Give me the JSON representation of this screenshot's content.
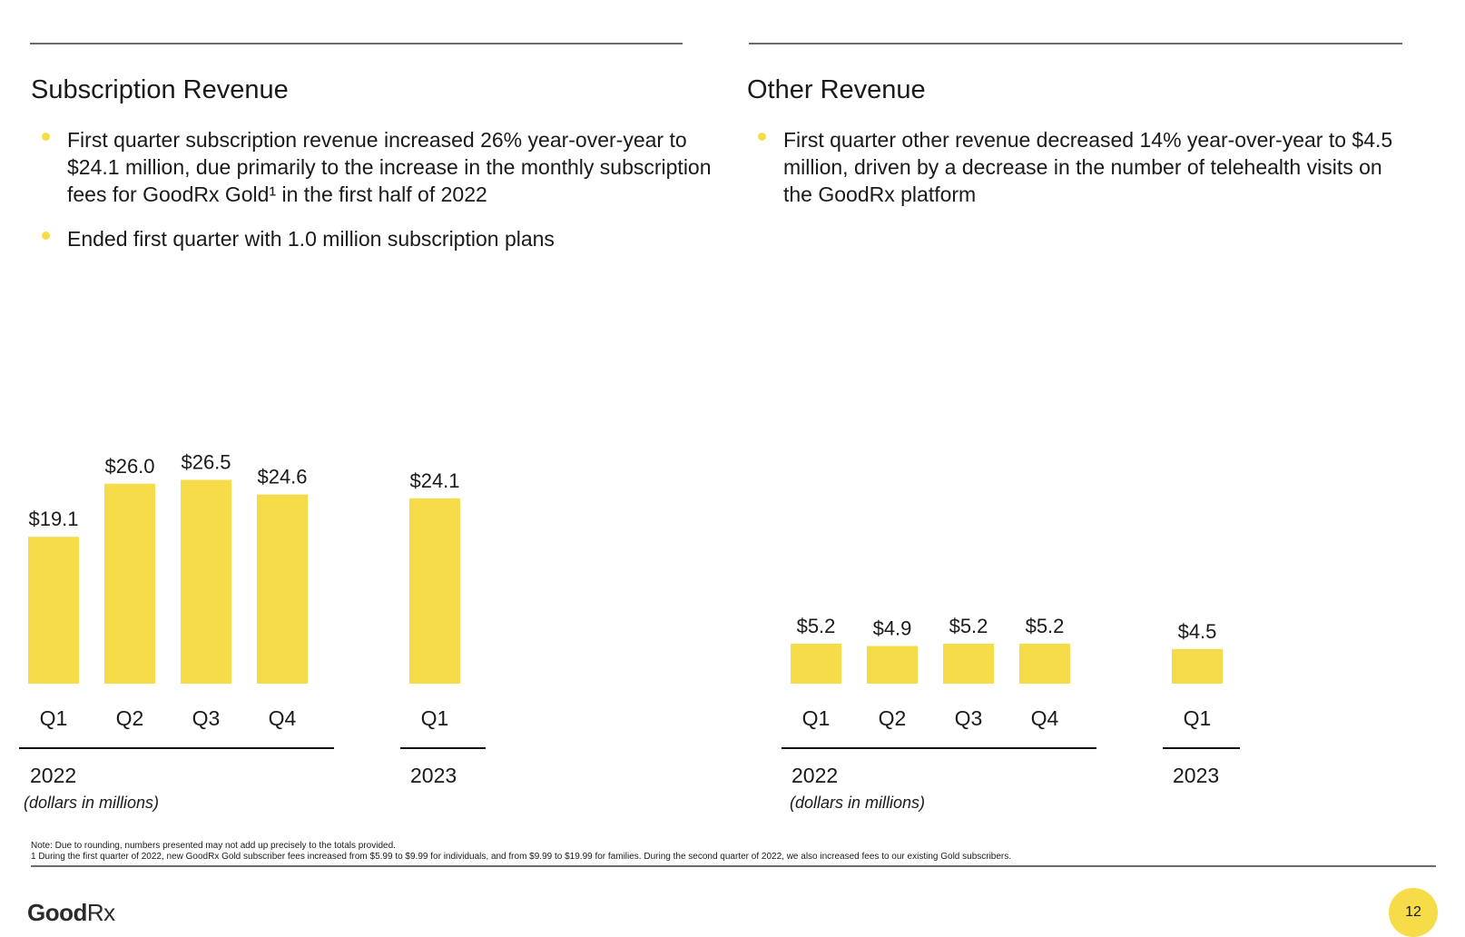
{
  "left": {
    "title": "Subscription Revenue",
    "bullets": [
      "First quarter subscription revenue increased 26% year-over-year to $24.1 million, due primarily to the increase in the monthly subscription fees for GoodRx Gold¹ in the first half of 2022",
      "Ended first quarter with 1.0 million subscription plans"
    ]
  },
  "right": {
    "title": "Other Revenue",
    "bullets": [
      "First quarter other revenue decreased 14% year-over-year to $4.5 million, driven by a decrease in the number of telehealth visits on the GoodRx platform"
    ]
  },
  "chart_data": [
    {
      "type": "bar",
      "title": "Subscription Revenue",
      "unit_label": "(dollars in millions)",
      "groups": [
        {
          "year": "2022",
          "categories": [
            "Q1",
            "Q2",
            "Q3",
            "Q4"
          ],
          "values": [
            19.1,
            26.0,
            26.5,
            24.6
          ],
          "labels": [
            "$19.1",
            "$26.0",
            "$26.5",
            "$24.6"
          ]
        },
        {
          "year": "2023",
          "categories": [
            "Q1"
          ],
          "values": [
            24.1
          ],
          "labels": [
            "$24.1"
          ]
        }
      ],
      "bar_color": "#F7DC4A"
    },
    {
      "type": "bar",
      "title": "Other Revenue",
      "unit_label": "(dollars in millions)",
      "groups": [
        {
          "year": "2022",
          "categories": [
            "Q1",
            "Q2",
            "Q3",
            "Q4"
          ],
          "values": [
            5.2,
            4.9,
            5.2,
            5.2
          ],
          "labels": [
            "$5.2",
            "$4.9",
            "$5.2",
            "$5.2"
          ]
        },
        {
          "year": "2023",
          "categories": [
            "Q1"
          ],
          "values": [
            4.5
          ],
          "labels": [
            "$4.5"
          ]
        }
      ],
      "bar_color": "#F7DC4A"
    }
  ],
  "footnotes": {
    "note": "Note: Due to rounding, numbers presented may not add up precisely to the totals provided.",
    "footnote_1": "1 During the first quarter of 2022, new GoodRx Gold subscriber fees increased from $5.99 to $9.99 for individuals, and from $9.99 to $19.99 for families. During the second quarter of 2022, we also increased fees to our existing Gold subscribers."
  },
  "logo": {
    "part1": "Good",
    "part2": "Rx"
  },
  "page_number": "12"
}
